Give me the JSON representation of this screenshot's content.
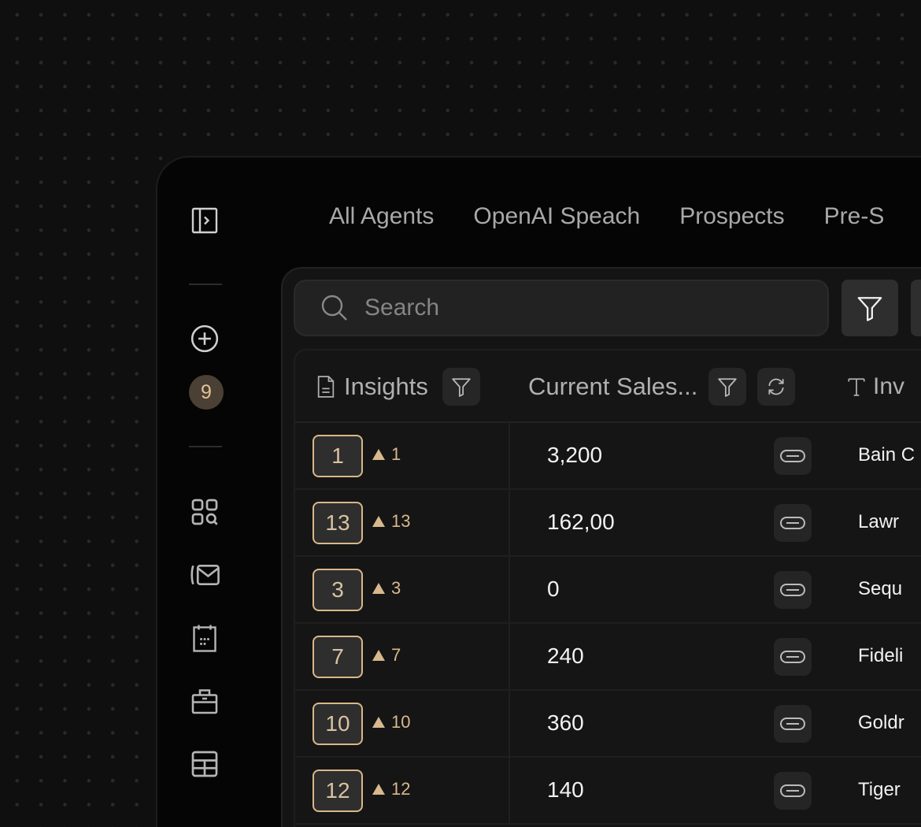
{
  "tabs": [
    "All Agents",
    "OpenAI Speach",
    "Prospects",
    "Pre-S"
  ],
  "sidebar": {
    "badge_count": "9"
  },
  "search": {
    "placeholder": "Search",
    "value": ""
  },
  "table": {
    "headers": {
      "insights": "Insights",
      "sales": "Current Sales...",
      "investor": "Inv"
    },
    "rows": [
      {
        "rank": "1",
        "delta": "1",
        "sales": "3,200",
        "investor": "Bain C"
      },
      {
        "rank": "13",
        "delta": "13",
        "sales": "162,00",
        "investor": "Lawr"
      },
      {
        "rank": "3",
        "delta": "3",
        "sales": "0",
        "investor": "Sequ"
      },
      {
        "rank": "7",
        "delta": "7",
        "sales": "240",
        "investor": "Fideli"
      },
      {
        "rank": "10",
        "delta": "10",
        "sales": "360",
        "investor": "Goldr"
      },
      {
        "rank": "12",
        "delta": "12",
        "sales": "140",
        "investor": "Tiger"
      }
    ]
  },
  "colors": {
    "accent": "#d9b889",
    "background": "#0f0f0f",
    "window": "#050505"
  }
}
